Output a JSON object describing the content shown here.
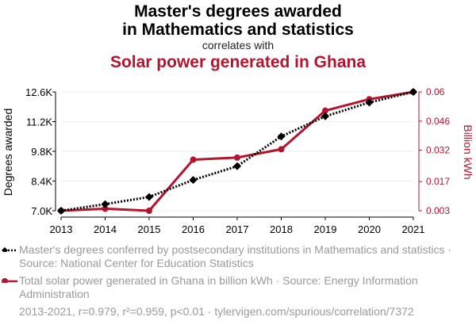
{
  "header": {
    "title_line1": "Master's degrees awarded",
    "title_line2": "in Mathematics and statistics",
    "correlates": "correlates with",
    "title_series2": "Solar power generated in Ghana"
  },
  "colors": {
    "series1": "#000000",
    "series2": "#b3152e",
    "legend_text": "#9a9a9a"
  },
  "chart_data": {
    "type": "line",
    "x": [
      2013,
      2014,
      2015,
      2016,
      2017,
      2018,
      2019,
      2020,
      2021
    ],
    "x_tick_labels": [
      "2013",
      "2014",
      "2015",
      "2016",
      "2017",
      "2018",
      "2019",
      "2020",
      "2021"
    ],
    "ylabel_left": "Degrees awarded",
    "ylabel_right": "Billion kWh",
    "ylim_left": [
      7000,
      12600
    ],
    "ylim_right": [
      0.003,
      0.06
    ],
    "yticks_left": [
      "7.0K",
      "8.4K",
      "9.8K",
      "11.2K",
      "12.6K"
    ],
    "yticks_right": [
      "0.003",
      "0.017",
      "0.032",
      "0.046",
      "0.06"
    ],
    "yticks_left_values": [
      7000,
      8400,
      9800,
      11200,
      12600
    ],
    "yticks_right_values": [
      0.003,
      0.017,
      0.032,
      0.046,
      0.06
    ],
    "grid": true,
    "series": [
      {
        "name": "Master's degrees conferred by postsecondary institutions in Mathematics and statistics · Source: National Center for Education Statistics",
        "axis": "left",
        "style": "dotted",
        "marker": "diamond",
        "values": [
          7000,
          7310,
          7650,
          8450,
          9100,
          10500,
          11450,
          12100,
          12600
        ]
      },
      {
        "name": "Total solar power generated in Ghana in billion kWh · Source: Energy Information Administration",
        "axis": "right",
        "style": "solid",
        "marker": "circle",
        "values": [
          0.003,
          0.004,
          0.003,
          0.0275,
          0.0285,
          0.0325,
          0.051,
          0.0565,
          0.06
        ]
      }
    ]
  },
  "footer": "2013-2021, r=0.979, r²=0.959, p<0.01 · tylervigen.com/spurious/correlation/7372"
}
